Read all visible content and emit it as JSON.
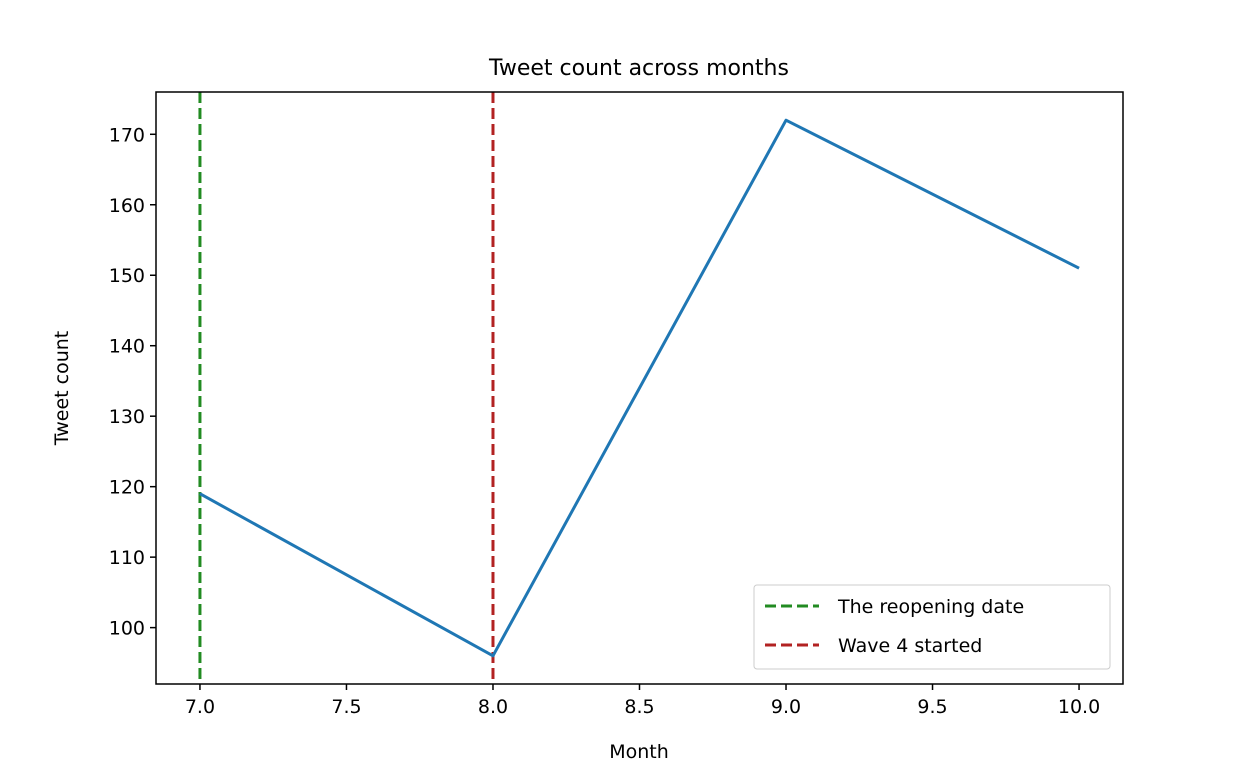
{
  "chart_data": {
    "type": "line",
    "title": "Tweet count across months",
    "xlabel": "Month",
    "ylabel": "Tweet count",
    "xlim": [
      6.85,
      10.15
    ],
    "ylim": [
      92,
      176
    ],
    "xticks": [
      7.0,
      7.5,
      8.0,
      8.5,
      9.0,
      9.5,
      10.0
    ],
    "xtick_labels": [
      "7.0",
      "7.5",
      "8.0",
      "8.5",
      "9.0",
      "9.5",
      "10.0"
    ],
    "yticks": [
      100,
      110,
      120,
      130,
      140,
      150,
      160,
      170
    ],
    "ytick_labels": [
      "100",
      "110",
      "120",
      "130",
      "140",
      "150",
      "160",
      "170"
    ],
    "grid": false,
    "series": [
      {
        "x": [
          7,
          8,
          9,
          10
        ],
        "y": [
          119,
          96,
          172,
          151
        ],
        "color": "#1f77b4"
      }
    ],
    "vlines": [
      {
        "x": 7,
        "label": "The reopening date",
        "color": "#228b22",
        "style": "dashed"
      },
      {
        "x": 8,
        "label": "Wave 4 started",
        "color": "#b22222",
        "style": "dashed"
      }
    ],
    "legend": {
      "placement": "lower-right",
      "entries": [
        "The reopening date",
        "Wave 4 started"
      ]
    }
  }
}
